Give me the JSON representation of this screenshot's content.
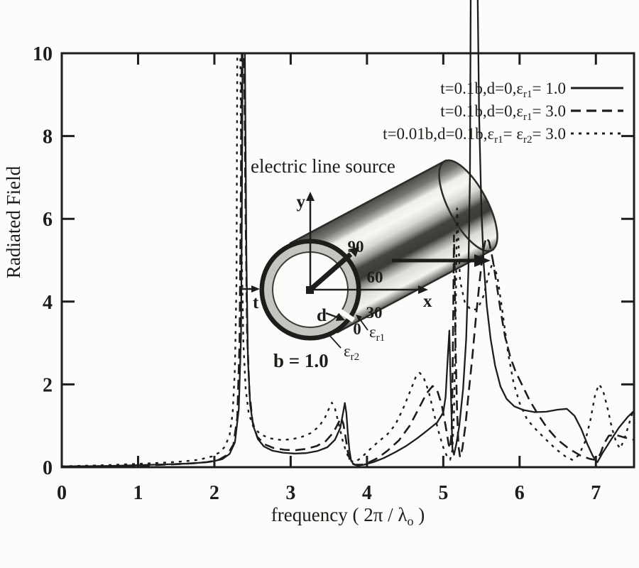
{
  "figure": {
    "background": "#fcfcfa",
    "ink": "#1d1d1b"
  },
  "chart_data": {
    "type": "line",
    "title": "",
    "xlabel_pre": "frequency ( 2π / λ",
    "xlabel_sub": "o",
    "xlabel_post": " )",
    "ylabel": "Radiated Field",
    "xlim": [
      0,
      7.5
    ],
    "ylim": [
      0,
      10
    ],
    "xticks": [
      "0",
      "1",
      "2",
      "3",
      "4",
      "5",
      "6",
      "7"
    ],
    "yticks": [
      "0",
      "2",
      "4",
      "6",
      "8",
      "10"
    ],
    "grid": false,
    "legend_position": "top-right",
    "series": [
      {
        "name": "t=0.1b,d=0,εr1= 1.0",
        "style": "solid",
        "points": [
          [
            0,
            0.02
          ],
          [
            0.6,
            0.03
          ],
          [
            1,
            0.05
          ],
          [
            1.4,
            0.07
          ],
          [
            1.7,
            0.09
          ],
          [
            1.95,
            0.13
          ],
          [
            2.1,
            0.19
          ],
          [
            2.2,
            0.32
          ],
          [
            2.27,
            0.6
          ],
          [
            2.32,
            1.4
          ],
          [
            2.35,
            3.2
          ],
          [
            2.36,
            6
          ],
          [
            2.37,
            10
          ],
          [
            2.4,
            10
          ],
          [
            2.42,
            5
          ],
          [
            2.44,
            2.6
          ],
          [
            2.47,
            1.5
          ],
          [
            2.51,
            1
          ],
          [
            2.57,
            0.68
          ],
          [
            2.65,
            0.5
          ],
          [
            2.76,
            0.4
          ],
          [
            2.9,
            0.35
          ],
          [
            3.05,
            0.33
          ],
          [
            3.2,
            0.34
          ],
          [
            3.35,
            0.39
          ],
          [
            3.48,
            0.48
          ],
          [
            3.58,
            0.66
          ],
          [
            3.65,
            0.95
          ],
          [
            3.69,
            1.35
          ],
          [
            3.71,
            1.55
          ],
          [
            3.73,
            1.3
          ],
          [
            3.75,
            0.8
          ],
          [
            3.77,
            0.42
          ],
          [
            3.79,
            0.18
          ],
          [
            3.82,
            0.07
          ],
          [
            3.88,
            0.04
          ],
          [
            3.96,
            0.06
          ],
          [
            4.08,
            0.12
          ],
          [
            4.22,
            0.22
          ],
          [
            4.38,
            0.37
          ],
          [
            4.52,
            0.52
          ],
          [
            4.66,
            0.7
          ],
          [
            4.8,
            0.9
          ],
          [
            4.92,
            1.08
          ],
          [
            5,
            1.32
          ],
          [
            5.03,
            1.7
          ],
          [
            5.06,
            2.7
          ],
          [
            5.08,
            3.3
          ],
          [
            5.09,
            2.5
          ],
          [
            5.11,
            1.1
          ],
          [
            5.12,
            0.45
          ],
          [
            5.14,
            0.3
          ],
          [
            5.17,
            0.55
          ],
          [
            5.21,
            1
          ],
          [
            5.26,
            1.9
          ],
          [
            5.3,
            3.1
          ],
          [
            5.33,
            4.8
          ],
          [
            5.35,
            7
          ],
          [
            5.36,
            11.5
          ],
          [
            5.45,
            11.5
          ],
          [
            5.47,
            8.5
          ],
          [
            5.5,
            6.2
          ],
          [
            5.53,
            4.9
          ],
          [
            5.57,
            3.9
          ],
          [
            5.62,
            3.1
          ],
          [
            5.68,
            2.45
          ],
          [
            5.75,
            1.95
          ],
          [
            5.83,
            1.65
          ],
          [
            5.93,
            1.47
          ],
          [
            6.05,
            1.38
          ],
          [
            6.2,
            1.33
          ],
          [
            6.35,
            1.34
          ],
          [
            6.5,
            1.39
          ],
          [
            6.62,
            1.41
          ],
          [
            6.72,
            1.24
          ],
          [
            6.81,
            0.92
          ],
          [
            6.89,
            0.55
          ],
          [
            6.96,
            0.27
          ],
          [
            7.02,
            0.12
          ],
          [
            7.09,
            0.35
          ],
          [
            7.19,
            0.64
          ],
          [
            7.3,
            0.95
          ],
          [
            7.42,
            1.22
          ],
          [
            7.5,
            1.36
          ]
        ]
      },
      {
        "name": "t=0.1b,d=0,εr1= 3.0",
        "style": "long-dash",
        "points": [
          [
            0,
            0.01
          ],
          [
            0.8,
            0.03
          ],
          [
            1.2,
            0.05
          ],
          [
            1.6,
            0.08
          ],
          [
            1.9,
            0.12
          ],
          [
            2.06,
            0.18
          ],
          [
            2.17,
            0.3
          ],
          [
            2.25,
            0.55
          ],
          [
            2.3,
            1.2
          ],
          [
            2.33,
            3
          ],
          [
            2.345,
            6
          ],
          [
            2.36,
            10
          ],
          [
            2.39,
            10
          ],
          [
            2.41,
            6
          ],
          [
            2.43,
            3.2
          ],
          [
            2.46,
            1.8
          ],
          [
            2.5,
            1.1
          ],
          [
            2.56,
            0.74
          ],
          [
            2.66,
            0.55
          ],
          [
            2.78,
            0.46
          ],
          [
            2.92,
            0.42
          ],
          [
            3.06,
            0.41
          ],
          [
            3.2,
            0.44
          ],
          [
            3.34,
            0.51
          ],
          [
            3.46,
            0.63
          ],
          [
            3.56,
            0.84
          ],
          [
            3.62,
            1.05
          ],
          [
            3.66,
            1.2
          ],
          [
            3.69,
            1.05
          ],
          [
            3.72,
            0.72
          ],
          [
            3.75,
            0.36
          ],
          [
            3.78,
            0.14
          ],
          [
            3.84,
            0.06
          ],
          [
            3.93,
            0.06
          ],
          [
            4.02,
            0.11
          ],
          [
            4.14,
            0.22
          ],
          [
            4.27,
            0.4
          ],
          [
            4.42,
            0.65
          ],
          [
            4.56,
            1
          ],
          [
            4.68,
            1.42
          ],
          [
            4.78,
            1.78
          ],
          [
            4.86,
            1.96
          ],
          [
            4.92,
            1.86
          ],
          [
            4.98,
            1.5
          ],
          [
            5.03,
            1
          ],
          [
            5.07,
            0.55
          ],
          [
            5.09,
            0.45
          ],
          [
            5.11,
            0.9
          ],
          [
            5.12,
            1.9
          ],
          [
            5.13,
            3.6
          ],
          [
            5.14,
            5.6
          ],
          [
            5.15,
            4.6
          ],
          [
            5.16,
            3
          ],
          [
            5.18,
            1.4
          ],
          [
            5.2,
            0.5
          ],
          [
            5.22,
            0.24
          ],
          [
            5.25,
            0.45
          ],
          [
            5.29,
            1
          ],
          [
            5.33,
            1.75
          ],
          [
            5.38,
            2.65
          ],
          [
            5.43,
            3.65
          ],
          [
            5.48,
            4.55
          ],
          [
            5.52,
            5.2
          ],
          [
            5.56,
            5.55
          ],
          [
            5.6,
            5.45
          ],
          [
            5.65,
            5
          ],
          [
            5.7,
            4.4
          ],
          [
            5.75,
            3.8
          ],
          [
            5.81,
            3.15
          ],
          [
            5.88,
            2.65
          ],
          [
            5.95,
            2.3
          ],
          [
            6.03,
            2
          ],
          [
            6.13,
            1.62
          ],
          [
            6.24,
            1.28
          ],
          [
            6.36,
            0.95
          ],
          [
            6.5,
            0.66
          ],
          [
            6.65,
            0.44
          ],
          [
            6.8,
            0.28
          ],
          [
            6.92,
            0.2
          ],
          [
            7.01,
            0.17
          ],
          [
            7.06,
            0.33
          ],
          [
            7.11,
            0.58
          ],
          [
            7.17,
            0.76
          ],
          [
            7.26,
            0.78
          ],
          [
            7.37,
            0.72
          ],
          [
            7.5,
            0.66
          ]
        ]
      },
      {
        "name": "t=0.01b,d=0.1b,εr1= εr2= 3.0",
        "style": "short-dash",
        "points": [
          [
            0,
            0.02
          ],
          [
            0.6,
            0.05
          ],
          [
            1,
            0.08
          ],
          [
            1.35,
            0.11
          ],
          [
            1.6,
            0.14
          ],
          [
            1.8,
            0.18
          ],
          [
            1.97,
            0.26
          ],
          [
            2.07,
            0.36
          ],
          [
            2.14,
            0.5
          ],
          [
            2.2,
            0.78
          ],
          [
            2.24,
            1.3
          ],
          [
            2.27,
            2.4
          ],
          [
            2.29,
            4.5
          ],
          [
            2.3,
            10
          ],
          [
            2.34,
            10
          ],
          [
            2.36,
            5
          ],
          [
            2.38,
            3
          ],
          [
            2.41,
            1.9
          ],
          [
            2.45,
            1.3
          ],
          [
            2.51,
            0.98
          ],
          [
            2.6,
            0.8
          ],
          [
            2.72,
            0.7
          ],
          [
            2.86,
            0.66
          ],
          [
            3,
            0.67
          ],
          [
            3.13,
            0.72
          ],
          [
            3.26,
            0.82
          ],
          [
            3.37,
            0.98
          ],
          [
            3.45,
            1.2
          ],
          [
            3.51,
            1.45
          ],
          [
            3.54,
            1.56
          ],
          [
            3.58,
            1.42
          ],
          [
            3.63,
            1.05
          ],
          [
            3.68,
            0.65
          ],
          [
            3.73,
            0.35
          ],
          [
            3.78,
            0.16
          ],
          [
            3.84,
            0.12
          ],
          [
            3.92,
            0.22
          ],
          [
            4.02,
            0.4
          ],
          [
            4.14,
            0.6
          ],
          [
            4.27,
            0.8
          ],
          [
            4.37,
            1.02
          ],
          [
            4.47,
            1.4
          ],
          [
            4.57,
            1.85
          ],
          [
            4.64,
            2.18
          ],
          [
            4.69,
            2.28
          ],
          [
            4.74,
            2.18
          ],
          [
            4.81,
            1.82
          ],
          [
            4.88,
            1.28
          ],
          [
            4.95,
            0.78
          ],
          [
            5.01,
            0.42
          ],
          [
            5.06,
            0.22
          ],
          [
            5.09,
            0.18
          ],
          [
            5.12,
            0.42
          ],
          [
            5.14,
            1.3
          ],
          [
            5.16,
            3.2
          ],
          [
            5.17,
            4.8
          ],
          [
            5.18,
            6.25
          ],
          [
            5.2,
            5.4
          ],
          [
            5.22,
            4.5
          ],
          [
            5.28,
            4
          ],
          [
            5.36,
            3.8
          ],
          [
            5.45,
            3.82
          ],
          [
            5.53,
            4.15
          ],
          [
            5.6,
            4.7
          ],
          [
            5.65,
            4.95
          ],
          [
            5.71,
            4.6
          ],
          [
            5.78,
            3.7
          ],
          [
            5.85,
            2.75
          ],
          [
            5.92,
            2.05
          ],
          [
            6,
            1.55
          ],
          [
            6.1,
            1.15
          ],
          [
            6.22,
            0.9
          ],
          [
            6.35,
            0.66
          ],
          [
            6.48,
            0.43
          ],
          [
            6.6,
            0.26
          ],
          [
            6.7,
            0.17
          ],
          [
            6.78,
            0.3
          ],
          [
            6.86,
            0.62
          ],
          [
            6.93,
            1.15
          ],
          [
            6.99,
            1.75
          ],
          [
            7.04,
            2
          ],
          [
            7.09,
            1.88
          ],
          [
            7.15,
            1.45
          ],
          [
            7.21,
            0.95
          ],
          [
            7.27,
            0.58
          ],
          [
            7.32,
            0.45
          ],
          [
            7.38,
            0.72
          ],
          [
            7.44,
            1.08
          ],
          [
            7.5,
            1.45
          ]
        ]
      }
    ]
  },
  "legend": {
    "rows": [
      {
        "style": "solid",
        "segments": [
          {
            "t": "t=0.1b,d=0,"
          },
          {
            "t": "ε"
          },
          {
            "t": "r1",
            "sub": true
          },
          {
            "t": "= 1.0"
          }
        ]
      },
      {
        "style": "long-dash",
        "segments": [
          {
            "t": "t=0.1b,d=0,"
          },
          {
            "t": "ε"
          },
          {
            "t": "r1",
            "sub": true
          },
          {
            "t": "= 3.0"
          }
        ]
      },
      {
        "style": "short-dash",
        "segments": [
          {
            "t": "t=0.01b,d=0.1b,"
          },
          {
            "t": "ε"
          },
          {
            "t": "r1",
            "sub": true
          },
          {
            "t": "= "
          },
          {
            "t": "ε"
          },
          {
            "t": "r2",
            "sub": true
          },
          {
            "t": "= 3.0"
          }
        ]
      }
    ]
  },
  "inset": {
    "title": "electric line source",
    "axis_x": "x",
    "axis_y": "y",
    "thickness_label": "t",
    "gap_label": "d",
    "radius_label": "b =  1.0",
    "eps1_base": "ε",
    "eps1_sub": "r1",
    "eps2_base": "ε",
    "eps2_sub": "r2",
    "angles": [
      "90",
      "60",
      "30",
      "0"
    ]
  }
}
